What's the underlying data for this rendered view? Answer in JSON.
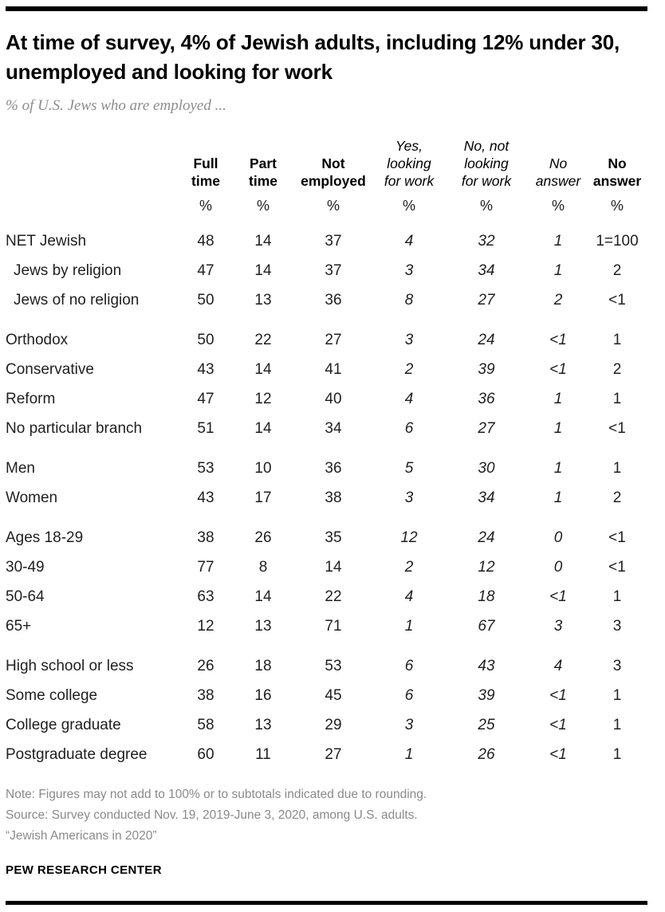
{
  "page": {
    "title": "At time of survey, 4% of Jewish adults, including 12% under 30, unemployed and looking for work",
    "subtitle": "% of U.S. Jews who are employed ...",
    "footer": {
      "note": "Note: Figures may not add to 100% or to subtotals indicated due to rounding.",
      "source": "Source: Survey conducted Nov. 19, 2019-June 3, 2020, among U.S. adults.",
      "citation": "“Jewish Americans in 2020”",
      "brand": "PEW RESEARCH CENTER"
    }
  },
  "chart_data": {
    "type": "table",
    "title": "At time of survey, 4% of Jewish adults, including 12% under 30, unemployed and looking for work",
    "subtitle": "% of U.S. Jews who are employed ...",
    "columns": [
      {
        "label": "Full time",
        "lines": "Full\ntime",
        "style": "bold"
      },
      {
        "label": "Part time",
        "lines": "Part\ntime",
        "style": "bold"
      },
      {
        "label": "Not employed",
        "lines": "Not\nemployed",
        "style": "bold"
      },
      {
        "label": "Yes, looking for work",
        "lines": "Yes,\nlooking\nfor work",
        "style": "italic"
      },
      {
        "label": "No, not looking for work",
        "lines": "No, not\nlooking\nfor work",
        "style": "italic"
      },
      {
        "label": "No answer",
        "lines": "No\nanswer",
        "style": "italic"
      },
      {
        "label": "No answer",
        "lines": "No\nanswer",
        "style": "bold"
      }
    ],
    "unit_row": [
      "%",
      "%",
      "%",
      "%",
      "%",
      "%",
      "%"
    ],
    "italic_value_columns": [
      3,
      4,
      5
    ],
    "groups": [
      {
        "rows": [
          {
            "label": "NET Jewish",
            "indent": false,
            "values": [
              "48",
              "14",
              "37",
              "4",
              "32",
              "1",
              "1=100"
            ]
          },
          {
            "label": "Jews by religion",
            "indent": true,
            "values": [
              "47",
              "14",
              "37",
              "3",
              "34",
              "1",
              "2"
            ]
          },
          {
            "label": "Jews of no religion",
            "indent": true,
            "values": [
              "50",
              "13",
              "36",
              "8",
              "27",
              "2",
              "<1"
            ]
          }
        ]
      },
      {
        "rows": [
          {
            "label": "Orthodox",
            "indent": false,
            "values": [
              "50",
              "22",
              "27",
              "3",
              "24",
              "<1",
              "1"
            ]
          },
          {
            "label": "Conservative",
            "indent": false,
            "values": [
              "43",
              "14",
              "41",
              "2",
              "39",
              "<1",
              "2"
            ]
          },
          {
            "label": "Reform",
            "indent": false,
            "values": [
              "47",
              "12",
              "40",
              "4",
              "36",
              "1",
              "1"
            ]
          },
          {
            "label": "No particular branch",
            "indent": false,
            "values": [
              "51",
              "14",
              "34",
              "6",
              "27",
              "1",
              "<1"
            ]
          }
        ]
      },
      {
        "rows": [
          {
            "label": "Men",
            "indent": false,
            "values": [
              "53",
              "10",
              "36",
              "5",
              "30",
              "1",
              "1"
            ]
          },
          {
            "label": "Women",
            "indent": false,
            "values": [
              "43",
              "17",
              "38",
              "3",
              "34",
              "1",
              "2"
            ]
          }
        ]
      },
      {
        "rows": [
          {
            "label": "Ages 18-29",
            "indent": false,
            "values": [
              "38",
              "26",
              "35",
              "12",
              "24",
              "0",
              "<1"
            ]
          },
          {
            "label": "30-49",
            "indent": false,
            "values": [
              "77",
              "8",
              "14",
              "2",
              "12",
              "0",
              "<1"
            ]
          },
          {
            "label": "50-64",
            "indent": false,
            "values": [
              "63",
              "14",
              "22",
              "4",
              "18",
              "<1",
              "1"
            ]
          },
          {
            "label": "65+",
            "indent": false,
            "values": [
              "12",
              "13",
              "71",
              "1",
              "67",
              "3",
              "3"
            ]
          }
        ]
      },
      {
        "rows": [
          {
            "label": "High school or less",
            "indent": false,
            "values": [
              "26",
              "18",
              "53",
              "6",
              "43",
              "4",
              "3"
            ]
          },
          {
            "label": "Some college",
            "indent": false,
            "values": [
              "38",
              "16",
              "45",
              "6",
              "39",
              "<1",
              "1"
            ]
          },
          {
            "label": "College graduate",
            "indent": false,
            "values": [
              "58",
              "13",
              "29",
              "3",
              "25",
              "<1",
              "1"
            ]
          },
          {
            "label": "Postgraduate degree",
            "indent": false,
            "values": [
              "60",
              "11",
              "27",
              "1",
              "26",
              "<1",
              "1"
            ]
          }
        ]
      }
    ],
    "layout": {
      "grid": false,
      "header_rule_color": "#000000",
      "text_color": "#1f1f1f",
      "muted_color": "#8a8a8a"
    }
  }
}
